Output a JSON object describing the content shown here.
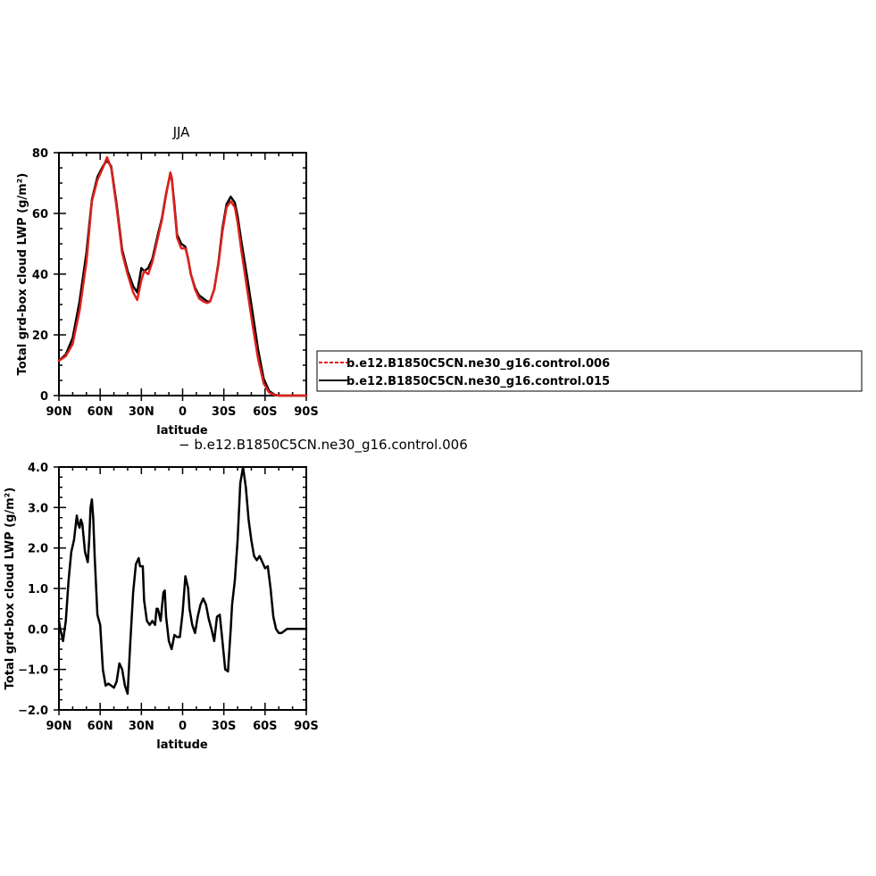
{
  "colors": {
    "series_a": "#e0201c",
    "series_b": "#000000",
    "axis": "#000000",
    "background": "#ffffff"
  },
  "chart_data": [
    {
      "type": "line",
      "title": "JJA",
      "xlabel": "latitude",
      "ylabel": "Total grd-box cloud LWP (g/m²)",
      "xlim": [
        90,
        -90
      ],
      "ylim": [
        0,
        80
      ],
      "x_ticks": [
        90,
        60,
        30,
        0,
        -30,
        -60,
        -90
      ],
      "x_tick_labels": [
        "90N",
        "60N",
        "30N",
        "0",
        "30S",
        "60S",
        "90S"
      ],
      "y_ticks": [
        0,
        20,
        40,
        60,
        80
      ],
      "y_tick_labels": [
        "0",
        "20",
        "40",
        "60",
        "80"
      ],
      "grid": false,
      "legend": "right",
      "series": [
        {
          "name": "b.e12.B1850C5CN.ne30_g16.control.006",
          "color": "#e0201c",
          "x": [
            90,
            85,
            80,
            75,
            70,
            66,
            62,
            58,
            55,
            52,
            48,
            44,
            40,
            36,
            33,
            30,
            28,
            25,
            22,
            18,
            15,
            12,
            9,
            8,
            6,
            4,
            1,
            -2,
            -4,
            -6,
            -9,
            -12,
            -15,
            -18,
            -20,
            -23,
            -26,
            -29,
            -32,
            -35,
            -38,
            -40,
            -43,
            -47,
            -51,
            -55,
            -59,
            -63,
            -67,
            -70,
            -72,
            -75,
            -78,
            -80,
            -85,
            -90
          ],
          "y": [
            11.5,
            13,
            17,
            28,
            44,
            64,
            71,
            75,
            78.5,
            75,
            62,
            47,
            40,
            34,
            31.5,
            38,
            41,
            40,
            44,
            52,
            58,
            66,
            73.5,
            72,
            62,
            52,
            48.5,
            48.5,
            45,
            40,
            35,
            32,
            31,
            30.5,
            31,
            35,
            43,
            54,
            62,
            64,
            62,
            57,
            47,
            35,
            23,
            12,
            4,
            1,
            0.2,
            0,
            0,
            0,
            0,
            0,
            0,
            0
          ]
        },
        {
          "name": "b.e12.B1850C5CN.ne30_g16.control.015",
          "color": "#000000",
          "x": [
            90,
            85,
            80,
            75,
            70,
            66,
            62,
            58,
            55,
            52,
            48,
            44,
            40,
            36,
            33,
            30,
            28,
            25,
            22,
            18,
            15,
            12,
            9,
            8,
            6,
            4,
            1,
            -2,
            -4,
            -6,
            -9,
            -12,
            -15,
            -18,
            -20,
            -23,
            -26,
            -29,
            -32,
            -35,
            -38,
            -40,
            -43,
            -47,
            -51,
            -55,
            -59,
            -63,
            -67,
            -70,
            -72,
            -75,
            -78,
            -80,
            -85,
            -90
          ],
          "y": [
            11.5,
            13.5,
            19,
            31,
            47,
            64.5,
            72,
            75.5,
            77.5,
            75.5,
            63,
            48,
            41,
            36,
            34,
            42,
            41,
            42,
            45,
            53,
            58.5,
            66.5,
            73,
            72,
            63,
            53,
            50,
            49,
            45,
            40,
            35.5,
            33,
            32,
            31,
            31,
            35,
            43.5,
            55,
            63,
            65.5,
            63.5,
            59,
            50,
            39,
            27,
            15,
            5.5,
            1.5,
            0.3,
            0,
            0,
            0,
            0,
            0,
            0,
            0
          ]
        }
      ]
    },
    {
      "type": "line",
      "title": "− b.e12.B1850C5CN.ne30_g16.control.006",
      "xlabel": "latitude",
      "ylabel": "Total grd-box cloud LWP (g/m²)",
      "xlim": [
        90,
        -90
      ],
      "ylim": [
        -2,
        4
      ],
      "x_ticks": [
        90,
        60,
        30,
        0,
        -30,
        -60,
        -90
      ],
      "x_tick_labels": [
        "90N",
        "60N",
        "30N",
        "0",
        "30S",
        "60S",
        "90S"
      ],
      "y_ticks": [
        -2,
        -1,
        0,
        1,
        2,
        3,
        4
      ],
      "y_tick_labels": [
        "−2.0",
        "−1.0",
        "0.0",
        "1.0",
        "2.0",
        "3.0",
        "4.0"
      ],
      "grid": false,
      "series": [
        {
          "name": "",
          "color": "#000000",
          "x": [
            90,
            89,
            87,
            85,
            83,
            81,
            79,
            77,
            76,
            75,
            74,
            73,
            71,
            69,
            68,
            67,
            66,
            65,
            64,
            62,
            60,
            58,
            56,
            54,
            52,
            50,
            48,
            46,
            44,
            42,
            40,
            38,
            36,
            34,
            32,
            31,
            29,
            28,
            26,
            24,
            22,
            20,
            19,
            18,
            16,
            14,
            13,
            12,
            10,
            8,
            6,
            4,
            2,
            0,
            -2,
            -4,
            -5,
            -7,
            -9,
            -11,
            -13,
            -15,
            -17,
            -19,
            -21,
            -23,
            -25,
            -27,
            -29,
            -31,
            -33,
            -35,
            -36,
            -38,
            -40,
            -42,
            -44,
            -46,
            -48,
            -50,
            -52,
            -54,
            -56,
            -58,
            -60,
            -62,
            -64,
            -66,
            -68,
            -70,
            -72,
            -74,
            -76,
            -80,
            -85,
            -90
          ],
          "y": [
            0.2,
            0,
            -0.3,
            0.2,
            1.2,
            1.9,
            2.2,
            2.8,
            2.6,
            2.5,
            2.7,
            2.6,
            1.9,
            1.65,
            2.2,
            3.0,
            3.2,
            2.7,
            1.8,
            0.35,
            0.1,
            -1.0,
            -1.4,
            -1.35,
            -1.4,
            -1.45,
            -1.3,
            -0.85,
            -1.0,
            -1.4,
            -1.6,
            -0.3,
            0.9,
            1.6,
            1.75,
            1.55,
            1.55,
            0.7,
            0.2,
            0.1,
            0.2,
            0.1,
            0.5,
            0.5,
            0.2,
            0.9,
            0.95,
            0.3,
            -0.3,
            -0.5,
            -0.15,
            -0.2,
            -0.2,
            0.4,
            1.3,
            1.0,
            0.5,
            0.1,
            -0.1,
            0.3,
            0.6,
            0.75,
            0.6,
            0.25,
            0.0,
            -0.3,
            0.3,
            0.35,
            -0.3,
            -1.0,
            -1.05,
            0.0,
            0.6,
            1.2,
            2.2,
            3.6,
            4.0,
            3.5,
            2.7,
            2.2,
            1.8,
            1.7,
            1.8,
            1.65,
            1.5,
            1.55,
            1.0,
            0.3,
            0.0,
            -0.1,
            -0.1,
            -0.05,
            0.0,
            0.0,
            0.0,
            0.0
          ]
        }
      ]
    }
  ]
}
